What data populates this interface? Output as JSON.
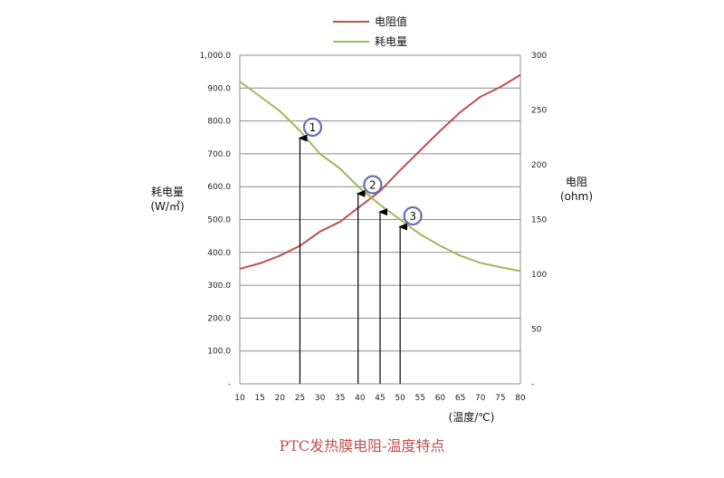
{
  "chart_data": {
    "type": "line",
    "x": [
      10,
      15,
      20,
      25,
      30,
      35,
      40,
      45,
      50,
      55,
      60,
      65,
      70,
      75,
      80
    ],
    "xlabel": "(温度/℃)",
    "ylabel_left": [
      "耗电量",
      "(W/㎡)"
    ],
    "ylabel_right": [
      "电阻",
      "(ohm)"
    ],
    "ylim_left": [
      0,
      1000
    ],
    "ylim_right": [
      0,
      300
    ],
    "left_tick_labels": [
      "-",
      "100.0",
      "200.0",
      "300.0",
      "400.0",
      "500.0",
      "600.0",
      "700.0",
      "800.0",
      "900.0",
      "1,000.0"
    ],
    "right_tick_labels": [
      "-",
      "50",
      "100",
      "150",
      "200",
      "250",
      "300"
    ],
    "grid": true,
    "legend_position": "top-center",
    "series": [
      {
        "name": "电阻值",
        "axis": "right",
        "color": "#c0504d",
        "values": [
          105,
          110,
          117,
          126,
          139,
          148,
          162,
          176,
          195,
          213,
          231,
          248,
          262,
          271,
          282
        ]
      },
      {
        "name": "耗电量",
        "axis": "left",
        "color": "#9bbb59",
        "values": [
          920,
          875,
          830,
          770,
          700,
          655,
          595,
          545,
          500,
          455,
          420,
          390,
          368,
          355,
          343
        ]
      }
    ],
    "markers": [
      {
        "label": "1",
        "x": 25
      },
      {
        "label": "2",
        "x": 40
      },
      {
        "label": "3",
        "x": 50
      }
    ],
    "arrows_at_x": [
      25,
      39.5,
      45,
      50
    ]
  },
  "caption": "PTC发热膜电阻-温度特点"
}
